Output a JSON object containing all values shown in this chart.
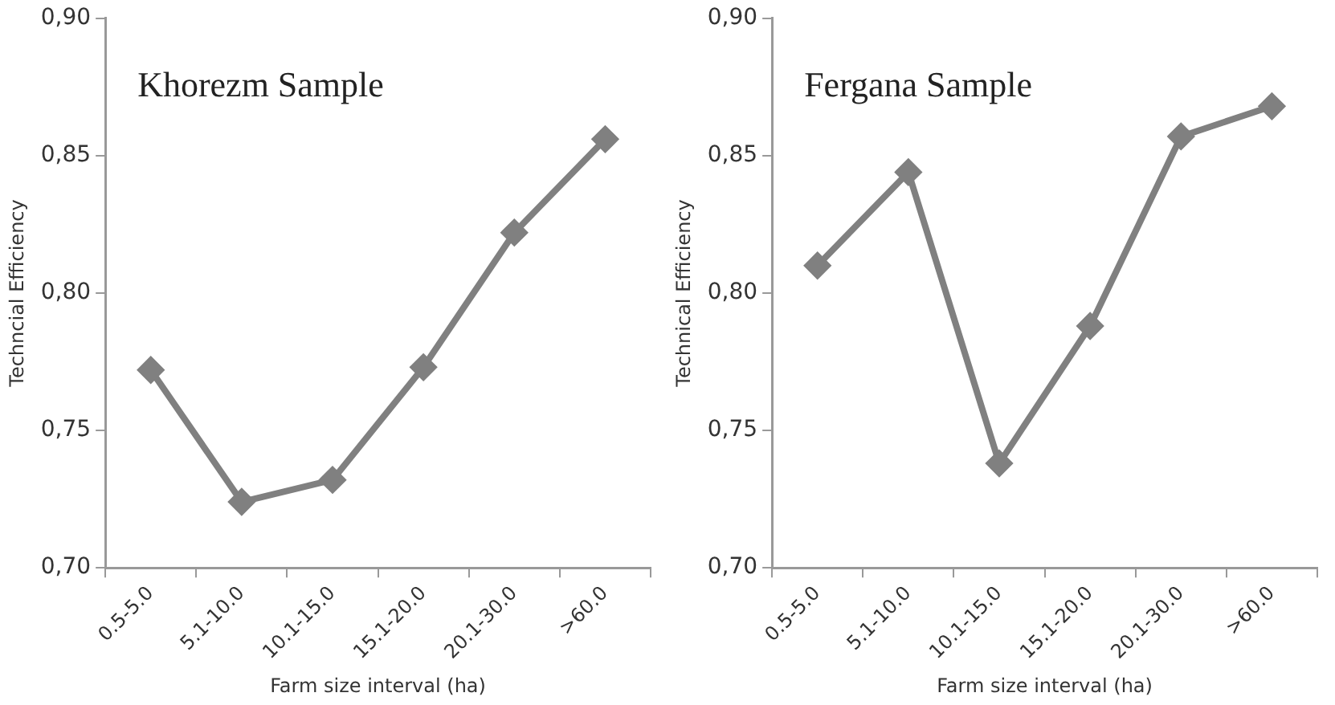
{
  "chart_data": [
    {
      "type": "line",
      "title": "Khorezm Sample",
      "xlabel": "Farm size interval (ha)",
      "ylabel": "Techncial Efficiency",
      "categories": [
        "0.5-5.0",
        "5.1-10.0",
        "10.1-15.0",
        "15.1-20.0",
        "20.1-30.0",
        ">60.0"
      ],
      "series": [
        {
          "color": "#808080",
          "values": [
            0.772,
            0.724,
            0.732,
            0.773,
            0.822,
            0.856
          ]
        }
      ],
      "ylim": [
        0.7,
        0.9
      ],
      "yticks": [
        {
          "value": 0.7,
          "label": "0,70"
        },
        {
          "value": 0.75,
          "label": "0,75"
        },
        {
          "value": 0.8,
          "label": "0,80"
        },
        {
          "value": 0.85,
          "label": "0,85"
        },
        {
          "value": 0.9,
          "label": "0,90"
        }
      ],
      "grid": false,
      "legend": false,
      "marker": "diamond",
      "line_style": "solid"
    },
    {
      "type": "line",
      "title": "Fergana Sample",
      "xlabel": "Farm size interval (ha)",
      "ylabel": "Technical Efficiency",
      "categories": [
        "0.5-5.0",
        "5.1-10.0",
        "10.1-15.0",
        "15.1-20.0",
        "20.1-30.0",
        ">60.0"
      ],
      "series": [
        {
          "color": "#808080",
          "values": [
            0.81,
            0.844,
            0.738,
            0.788,
            0.857,
            0.868
          ]
        }
      ],
      "ylim": [
        0.7,
        0.9
      ],
      "yticks": [
        {
          "value": 0.7,
          "label": "0,70"
        },
        {
          "value": 0.75,
          "label": "0,75"
        },
        {
          "value": 0.8,
          "label": "0,80"
        },
        {
          "value": 0.85,
          "label": "0,85"
        },
        {
          "value": 0.9,
          "label": "0,90"
        }
      ],
      "grid": false,
      "legend": false,
      "marker": "diamond",
      "line_style": "solid"
    }
  ]
}
